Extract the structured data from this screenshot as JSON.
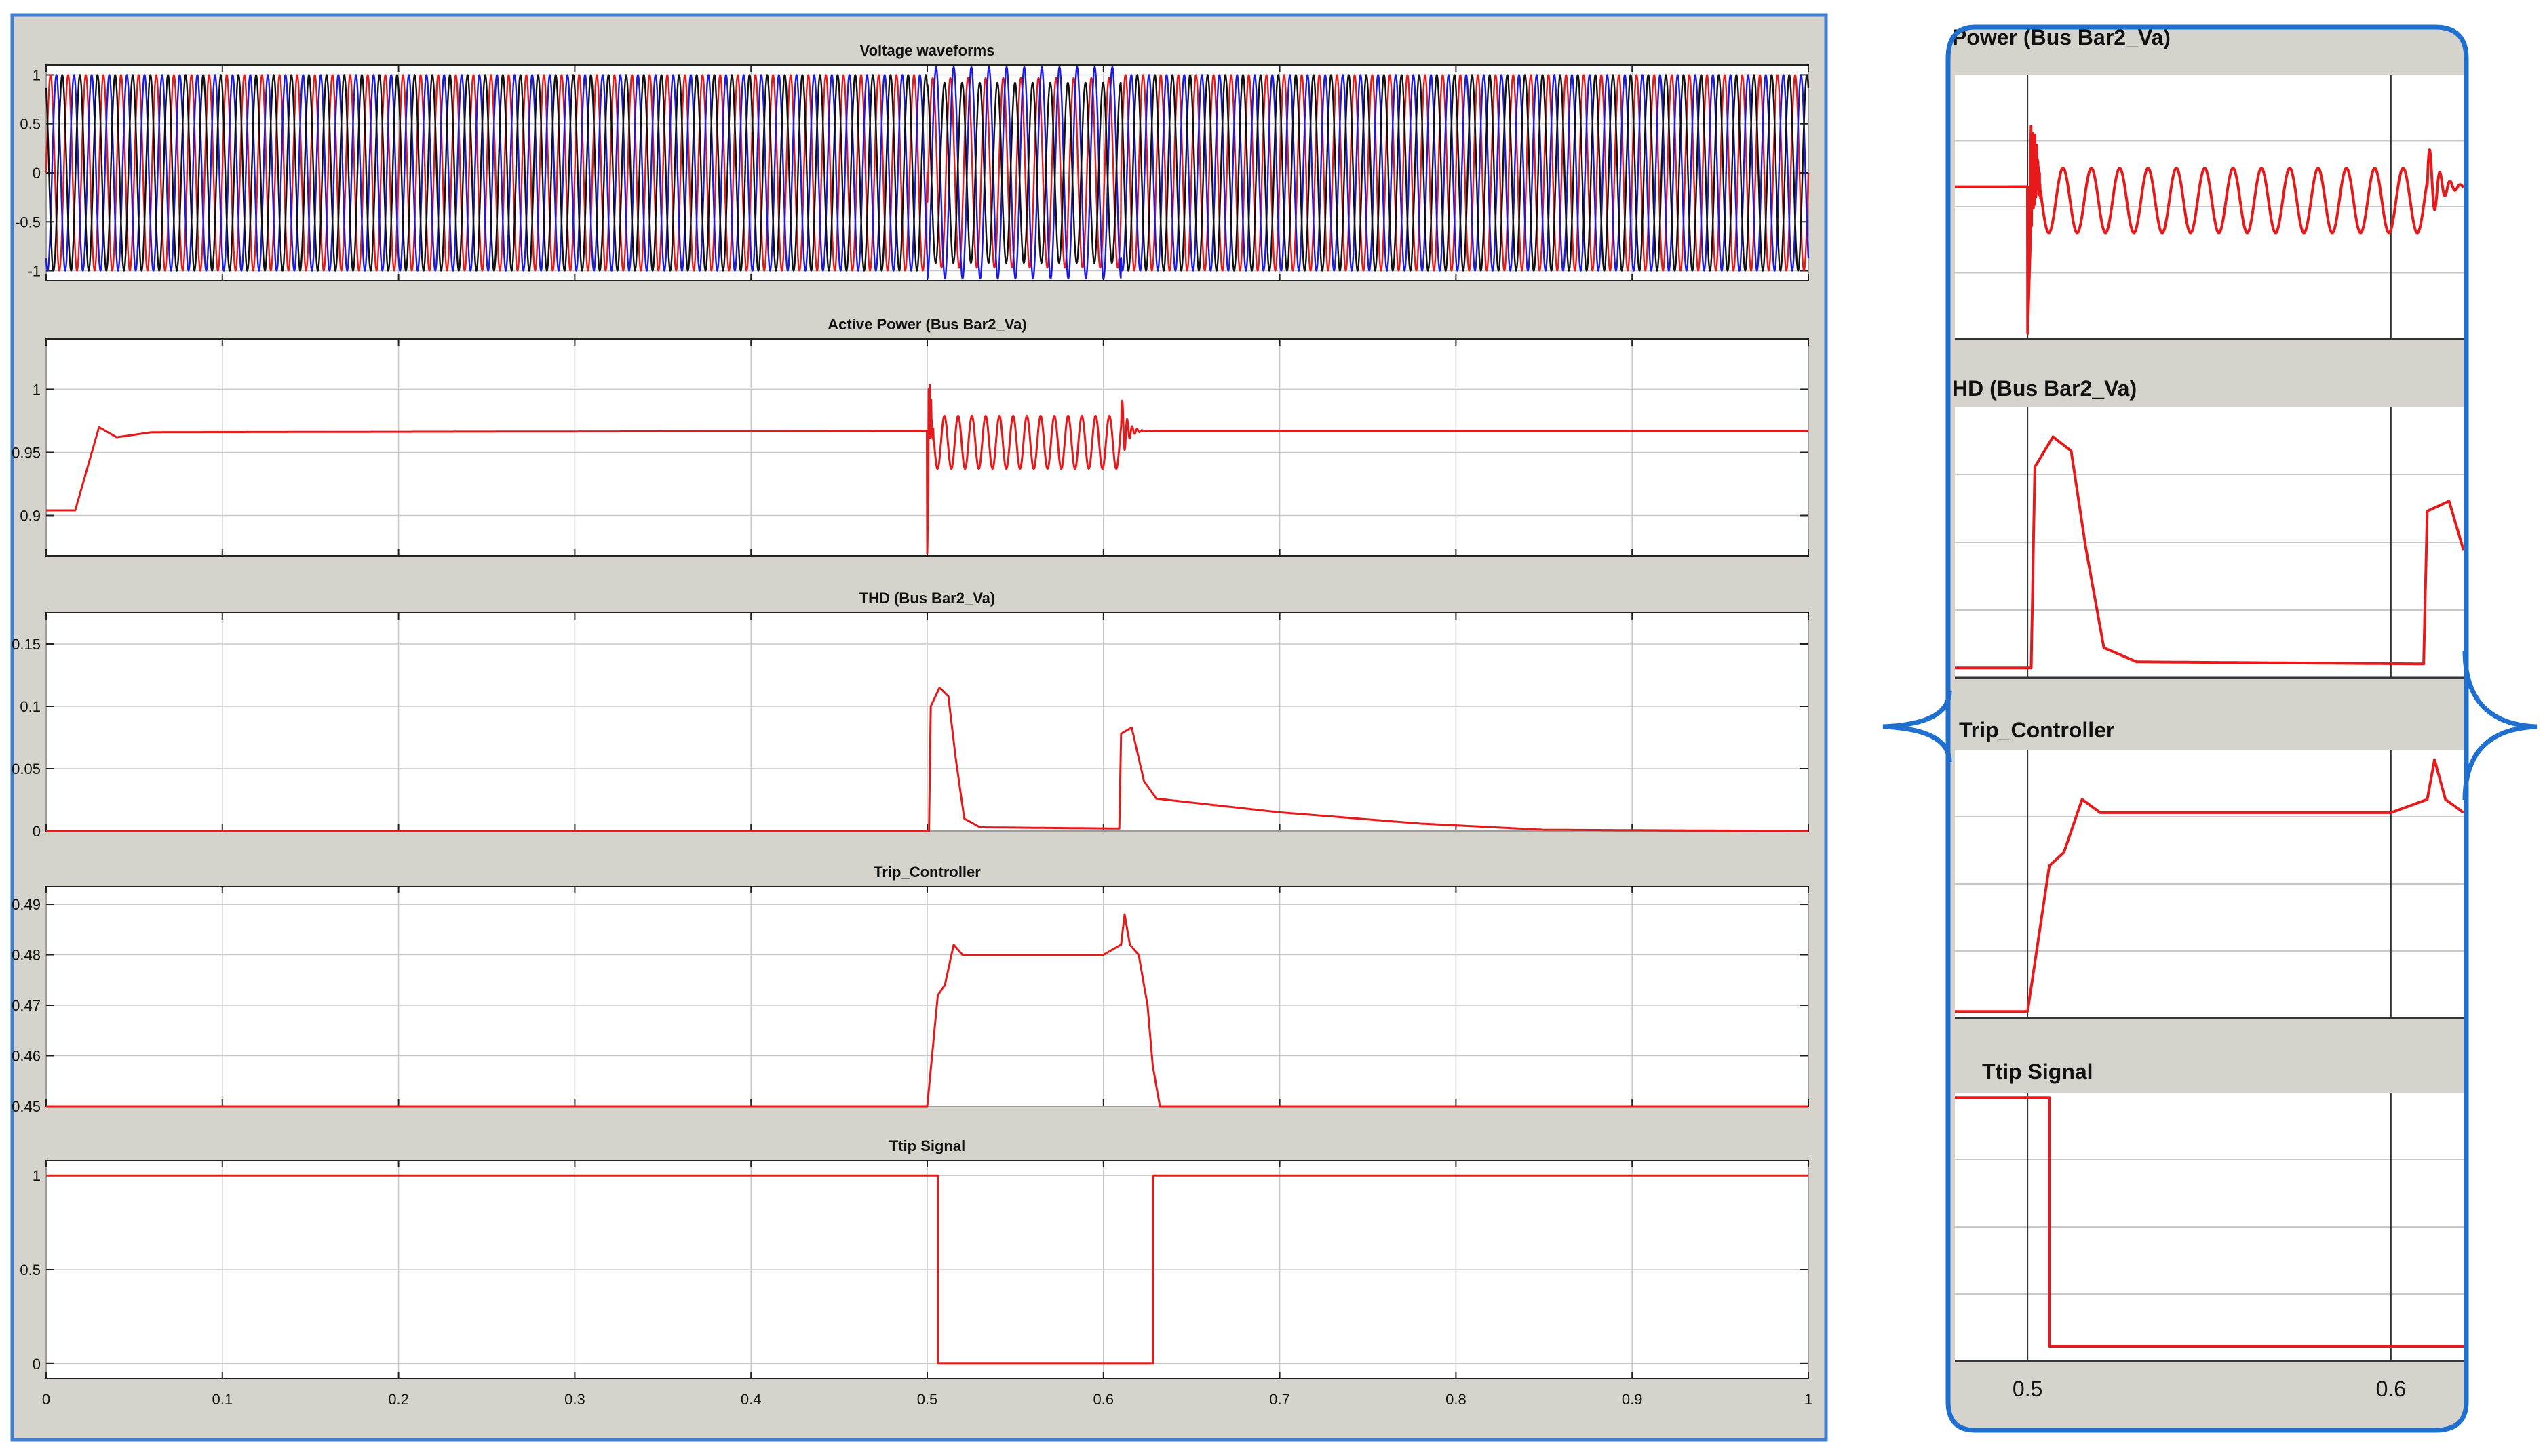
{
  "chart_data": [
    {
      "panel": "main",
      "type": "line",
      "xlim": [
        0,
        1
      ],
      "x_ticks": [
        "0",
        "0.1",
        "0.2",
        "0.3",
        "0.4",
        "0.5",
        "0.6",
        "0.7",
        "0.8",
        "0.9",
        "1"
      ],
      "grid": true,
      "plots": [
        {
          "title": "Voltage waveforms",
          "ylim": [
            -1.1,
            1.1
          ],
          "y_ticks": [
            "1",
            "0.5",
            "0",
            "-0.5",
            "-1"
          ],
          "y_tick_values": [
            1,
            0.5,
            0,
            -0.5,
            -1
          ],
          "signal": "three-phase sine",
          "series": [
            {
              "color": "#e8191a"
            },
            {
              "color": "#1a1ae0"
            },
            {
              "color": "#111111"
            }
          ],
          "fault_window": [
            0.5,
            0.61
          ]
        },
        {
          "title": "Active Power (Bus Bar2_Va)",
          "ylim": [
            0.868,
            1.04
          ],
          "y_ticks": [
            "1",
            "0.95",
            "0.9"
          ],
          "y_tick_values": [
            1,
            0.95,
            0.9
          ],
          "points": [
            [
              0,
              0.904
            ],
            [
              0.0165,
              0.904
            ],
            [
              0.03,
              0.97
            ],
            [
              0.04,
              0.962
            ],
            [
              0.06,
              0.966
            ],
            [
              0.5,
              0.967
            ],
            [
              0.5,
              0.87
            ],
            [
              0.61,
              0.97
            ],
            [
              0.62,
              0.968
            ],
            [
              1,
              0.966
            ]
          ],
          "oscillation": {
            "start": 0.5,
            "end": 0.61,
            "center": 0.958,
            "amplitude": 0.021,
            "period": 0.0078
          },
          "color": "#e8191a"
        },
        {
          "title": "THD (Bus Bar2_Va)",
          "ylim": [
            0,
            0.175
          ],
          "y_ticks": [
            "0.15",
            "0.1",
            "0.05",
            "0"
          ],
          "y_tick_values": [
            0.15,
            0.1,
            0.05,
            0
          ],
          "points": [
            [
              0,
              0
            ],
            [
              0.501,
              0
            ],
            [
              0.502,
              0.1
            ],
            [
              0.507,
              0.115
            ],
            [
              0.512,
              0.108
            ],
            [
              0.516,
              0.06
            ],
            [
              0.521,
              0.01
            ],
            [
              0.53,
              0.003
            ],
            [
              0.609,
              0.002
            ],
            [
              0.61,
              0.078
            ],
            [
              0.616,
              0.083
            ],
            [
              0.623,
              0.04
            ],
            [
              0.63,
              0.026
            ],
            [
              0.7,
              0.015
            ],
            [
              0.78,
              0.006
            ],
            [
              0.85,
              0.001
            ],
            [
              1,
              0
            ]
          ],
          "color": "#e8191a"
        },
        {
          "title": "Trip_Controller",
          "ylim": [
            0.45,
            0.4935
          ],
          "y_ticks": [
            "0.49",
            "0.48",
            "0.47",
            "0.46",
            "0.45"
          ],
          "y_tick_values": [
            0.49,
            0.48,
            0.47,
            0.46,
            0.45
          ],
          "points": [
            [
              0,
              0.45
            ],
            [
              0.5,
              0.45
            ],
            [
              0.506,
              0.472
            ],
            [
              0.51,
              0.474
            ],
            [
              0.515,
              0.482
            ],
            [
              0.52,
              0.48
            ],
            [
              0.53,
              0.48
            ],
            [
              0.6,
              0.48
            ],
            [
              0.61,
              0.482
            ],
            [
              0.612,
              0.488
            ],
            [
              0.615,
              0.482
            ],
            [
              0.62,
              0.48
            ],
            [
              0.625,
              0.47
            ],
            [
              0.628,
              0.458
            ],
            [
              0.632,
              0.45
            ],
            [
              1,
              0.45
            ]
          ],
          "color": "#e8191a"
        },
        {
          "title": "Ttip Signal",
          "ylim": [
            -0.08,
            1.08
          ],
          "y_ticks": [
            "1",
            "0.5",
            "0"
          ],
          "y_tick_values": [
            1,
            0.5,
            0
          ],
          "points": [
            [
              0,
              1
            ],
            [
              0.506,
              1
            ],
            [
              0.506,
              0
            ],
            [
              0.628,
              0
            ],
            [
              0.628,
              1
            ],
            [
              1,
              1
            ]
          ],
          "color": "#e8191a"
        }
      ]
    },
    {
      "panel": "zoom",
      "type": "line",
      "xlim": [
        0.48,
        0.62
      ],
      "x_ticks": [
        "0.5",
        "0.6"
      ],
      "x_tick_values": [
        0.5,
        0.6
      ],
      "plots": [
        {
          "title": "Power (Bus Bar2_Va)"
        },
        {
          "title": "HD (Bus Bar2_Va)"
        },
        {
          "title": "Trip_Controller"
        },
        {
          "title": "Ttip Signal"
        }
      ],
      "color": "#e8191a"
    }
  ]
}
